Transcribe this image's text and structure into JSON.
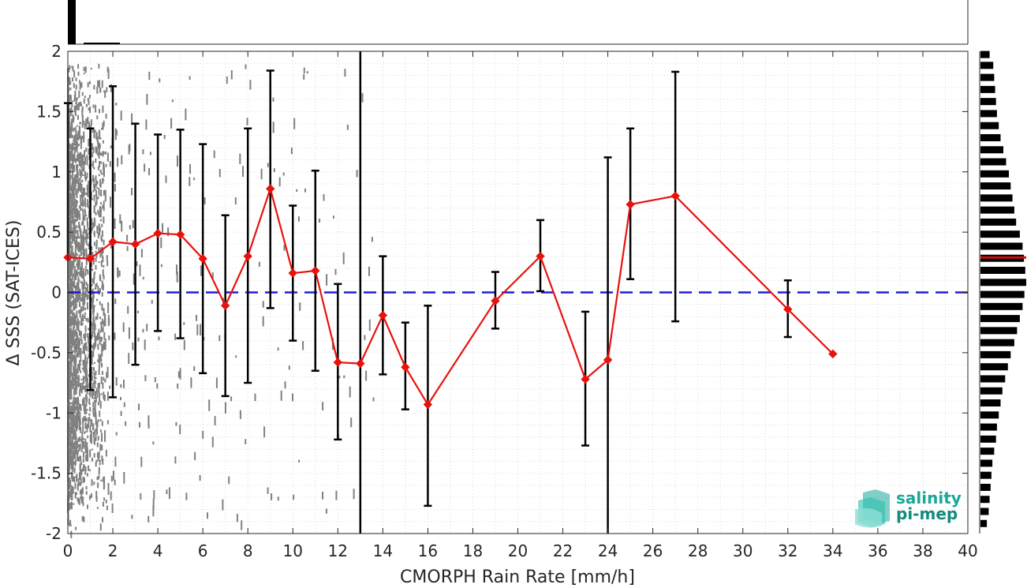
{
  "chart_data": {
    "type": "line",
    "xlabel": "CMORPH Rain Rate [mm/h]",
    "ylabel": "Δ SSS (SAT-ICES)",
    "xlim": [
      0,
      40
    ],
    "ylim": [
      -2,
      2
    ],
    "xticks": [
      0,
      2,
      4,
      6,
      8,
      10,
      12,
      14,
      16,
      18,
      20,
      22,
      24,
      26,
      28,
      30,
      32,
      34,
      36,
      38,
      40
    ],
    "yticks": [
      2,
      1.5,
      1,
      0.5,
      0,
      -0.5,
      -1,
      -1.5,
      -2
    ],
    "ytick_labels": [
      "2",
      "1.5",
      "1",
      "0.5",
      "0",
      "-0.5",
      "-1",
      "-1.5",
      "-2"
    ],
    "grid": true,
    "reference_line": {
      "y": 0,
      "style": "dashed",
      "color": "#1f1fd6"
    },
    "series": [
      {
        "color": "#e8120c",
        "marker": "diamond",
        "x": [
          0,
          1,
          2,
          3,
          4,
          5,
          6,
          7,
          8,
          9,
          10,
          11,
          12,
          13,
          14,
          15,
          16,
          19,
          21,
          23,
          24,
          25,
          27,
          32,
          34
        ],
        "y": [
          0.29,
          0.28,
          0.42,
          0.4,
          0.49,
          0.48,
          0.28,
          -0.11,
          0.3,
          0.86,
          0.16,
          0.18,
          -0.58,
          -0.59,
          -0.19,
          -0.62,
          -0.93,
          -0.07,
          0.3,
          -0.72,
          -0.56,
          0.73,
          0.8,
          -0.14,
          -0.51
        ],
        "err_low": [
          null,
          -0.81,
          -0.87,
          -0.6,
          -0.32,
          -0.38,
          -0.67,
          -0.86,
          -0.75,
          -0.13,
          -0.4,
          -0.65,
          -1.22,
          -2.0,
          -0.68,
          -0.97,
          -1.77,
          -0.3,
          0.01,
          -1.27,
          -2.0,
          0.11,
          -0.24,
          -0.37,
          null
        ],
        "err_high": [
          1.57,
          1.36,
          1.71,
          1.4,
          1.31,
          1.35,
          1.23,
          0.64,
          1.36,
          1.84,
          0.72,
          1.01,
          0.07,
          2.0,
          0.3,
          -0.25,
          -0.11,
          0.17,
          0.6,
          -0.16,
          1.12,
          1.36,
          1.83,
          0.1,
          null
        ]
      }
    ],
    "scatter_color": "#808080",
    "top_histogram_color": "#000000",
    "side_histogram": {
      "color": "#000000",
      "mean_line_color": "#cc1111",
      "mean_y": 0.29,
      "bins": [
        {
          "y": 1.97,
          "w": 0.2
        },
        {
          "y": 1.88,
          "w": 0.28
        },
        {
          "y": 1.78,
          "w": 0.3
        },
        {
          "y": 1.68,
          "w": 0.32
        },
        {
          "y": 1.58,
          "w": 0.34
        },
        {
          "y": 1.48,
          "w": 0.36
        },
        {
          "y": 1.38,
          "w": 0.4
        },
        {
          "y": 1.28,
          "w": 0.44
        },
        {
          "y": 1.18,
          "w": 0.5
        },
        {
          "y": 1.08,
          "w": 0.56
        },
        {
          "y": 0.98,
          "w": 0.62
        },
        {
          "y": 0.88,
          "w": 0.66
        },
        {
          "y": 0.78,
          "w": 0.7
        },
        {
          "y": 0.68,
          "w": 0.74
        },
        {
          "y": 0.58,
          "w": 0.78
        },
        {
          "y": 0.48,
          "w": 0.86
        },
        {
          "y": 0.38,
          "w": 0.92
        },
        {
          "y": 0.28,
          "w": 0.95
        },
        {
          "y": 0.18,
          "w": 0.98
        },
        {
          "y": 0.08,
          "w": 1.0
        },
        {
          "y": -0.02,
          "w": 0.96
        },
        {
          "y": -0.12,
          "w": 0.92
        },
        {
          "y": -0.22,
          "w": 0.86
        },
        {
          "y": -0.32,
          "w": 0.8
        },
        {
          "y": -0.42,
          "w": 0.74
        },
        {
          "y": -0.52,
          "w": 0.66
        },
        {
          "y": -0.62,
          "w": 0.6
        },
        {
          "y": -0.72,
          "w": 0.54
        },
        {
          "y": -0.82,
          "w": 0.48
        },
        {
          "y": -0.92,
          "w": 0.44
        },
        {
          "y": -1.02,
          "w": 0.4
        },
        {
          "y": -1.12,
          "w": 0.36
        },
        {
          "y": -1.22,
          "w": 0.34
        },
        {
          "y": -1.32,
          "w": 0.3
        },
        {
          "y": -1.42,
          "w": 0.26
        },
        {
          "y": -1.52,
          "w": 0.24
        },
        {
          "y": -1.62,
          "w": 0.22
        },
        {
          "y": -1.72,
          "w": 0.2
        },
        {
          "y": -1.82,
          "w": 0.18
        },
        {
          "y": -1.92,
          "w": 0.14
        }
      ]
    }
  },
  "logo": {
    "line1": "salinity",
    "line2": "pi-mep",
    "color_top": "#1aa89a",
    "color_bottom": "#138a7e"
  }
}
